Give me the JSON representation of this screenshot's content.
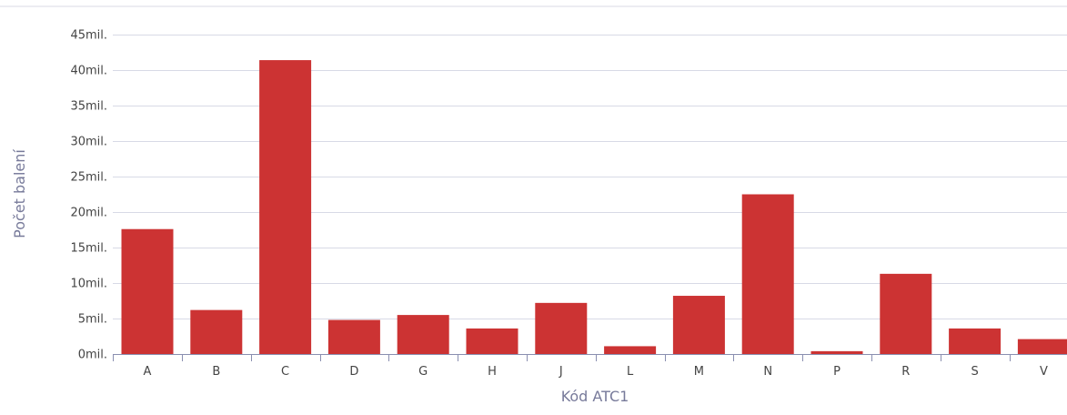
{
  "chart_data": {
    "type": "bar",
    "xlabel": "Kód ATC1",
    "ylabel": "Počet balení",
    "categories": [
      "A",
      "B",
      "C",
      "D",
      "G",
      "H",
      "J",
      "L",
      "M",
      "N",
      "P",
      "R",
      "S",
      "V"
    ],
    "values": [
      17.6,
      6.2,
      41.4,
      4.8,
      5.5,
      3.6,
      7.2,
      1.1,
      8.2,
      22.5,
      0.4,
      11.3,
      3.6,
      2.1
    ],
    "ylim": [
      0,
      45
    ],
    "yticks": [
      0,
      5,
      10,
      15,
      20,
      25,
      30,
      35,
      40,
      45
    ],
    "ytick_suffix": "mil.",
    "ytick_labels": [
      "0mil.",
      "5mil.",
      "10mil.",
      "15mil.",
      "20mil.",
      "25mil.",
      "30mil.",
      "35mil.",
      "40mil.",
      "45mil."
    ],
    "grid": true,
    "legend": "none",
    "colors": {
      "bar": "#cc3333",
      "grid": "#d8dae6",
      "axis": "#8a8fb0",
      "tick_text": "#444444",
      "axis_title": "#777a9a"
    }
  }
}
